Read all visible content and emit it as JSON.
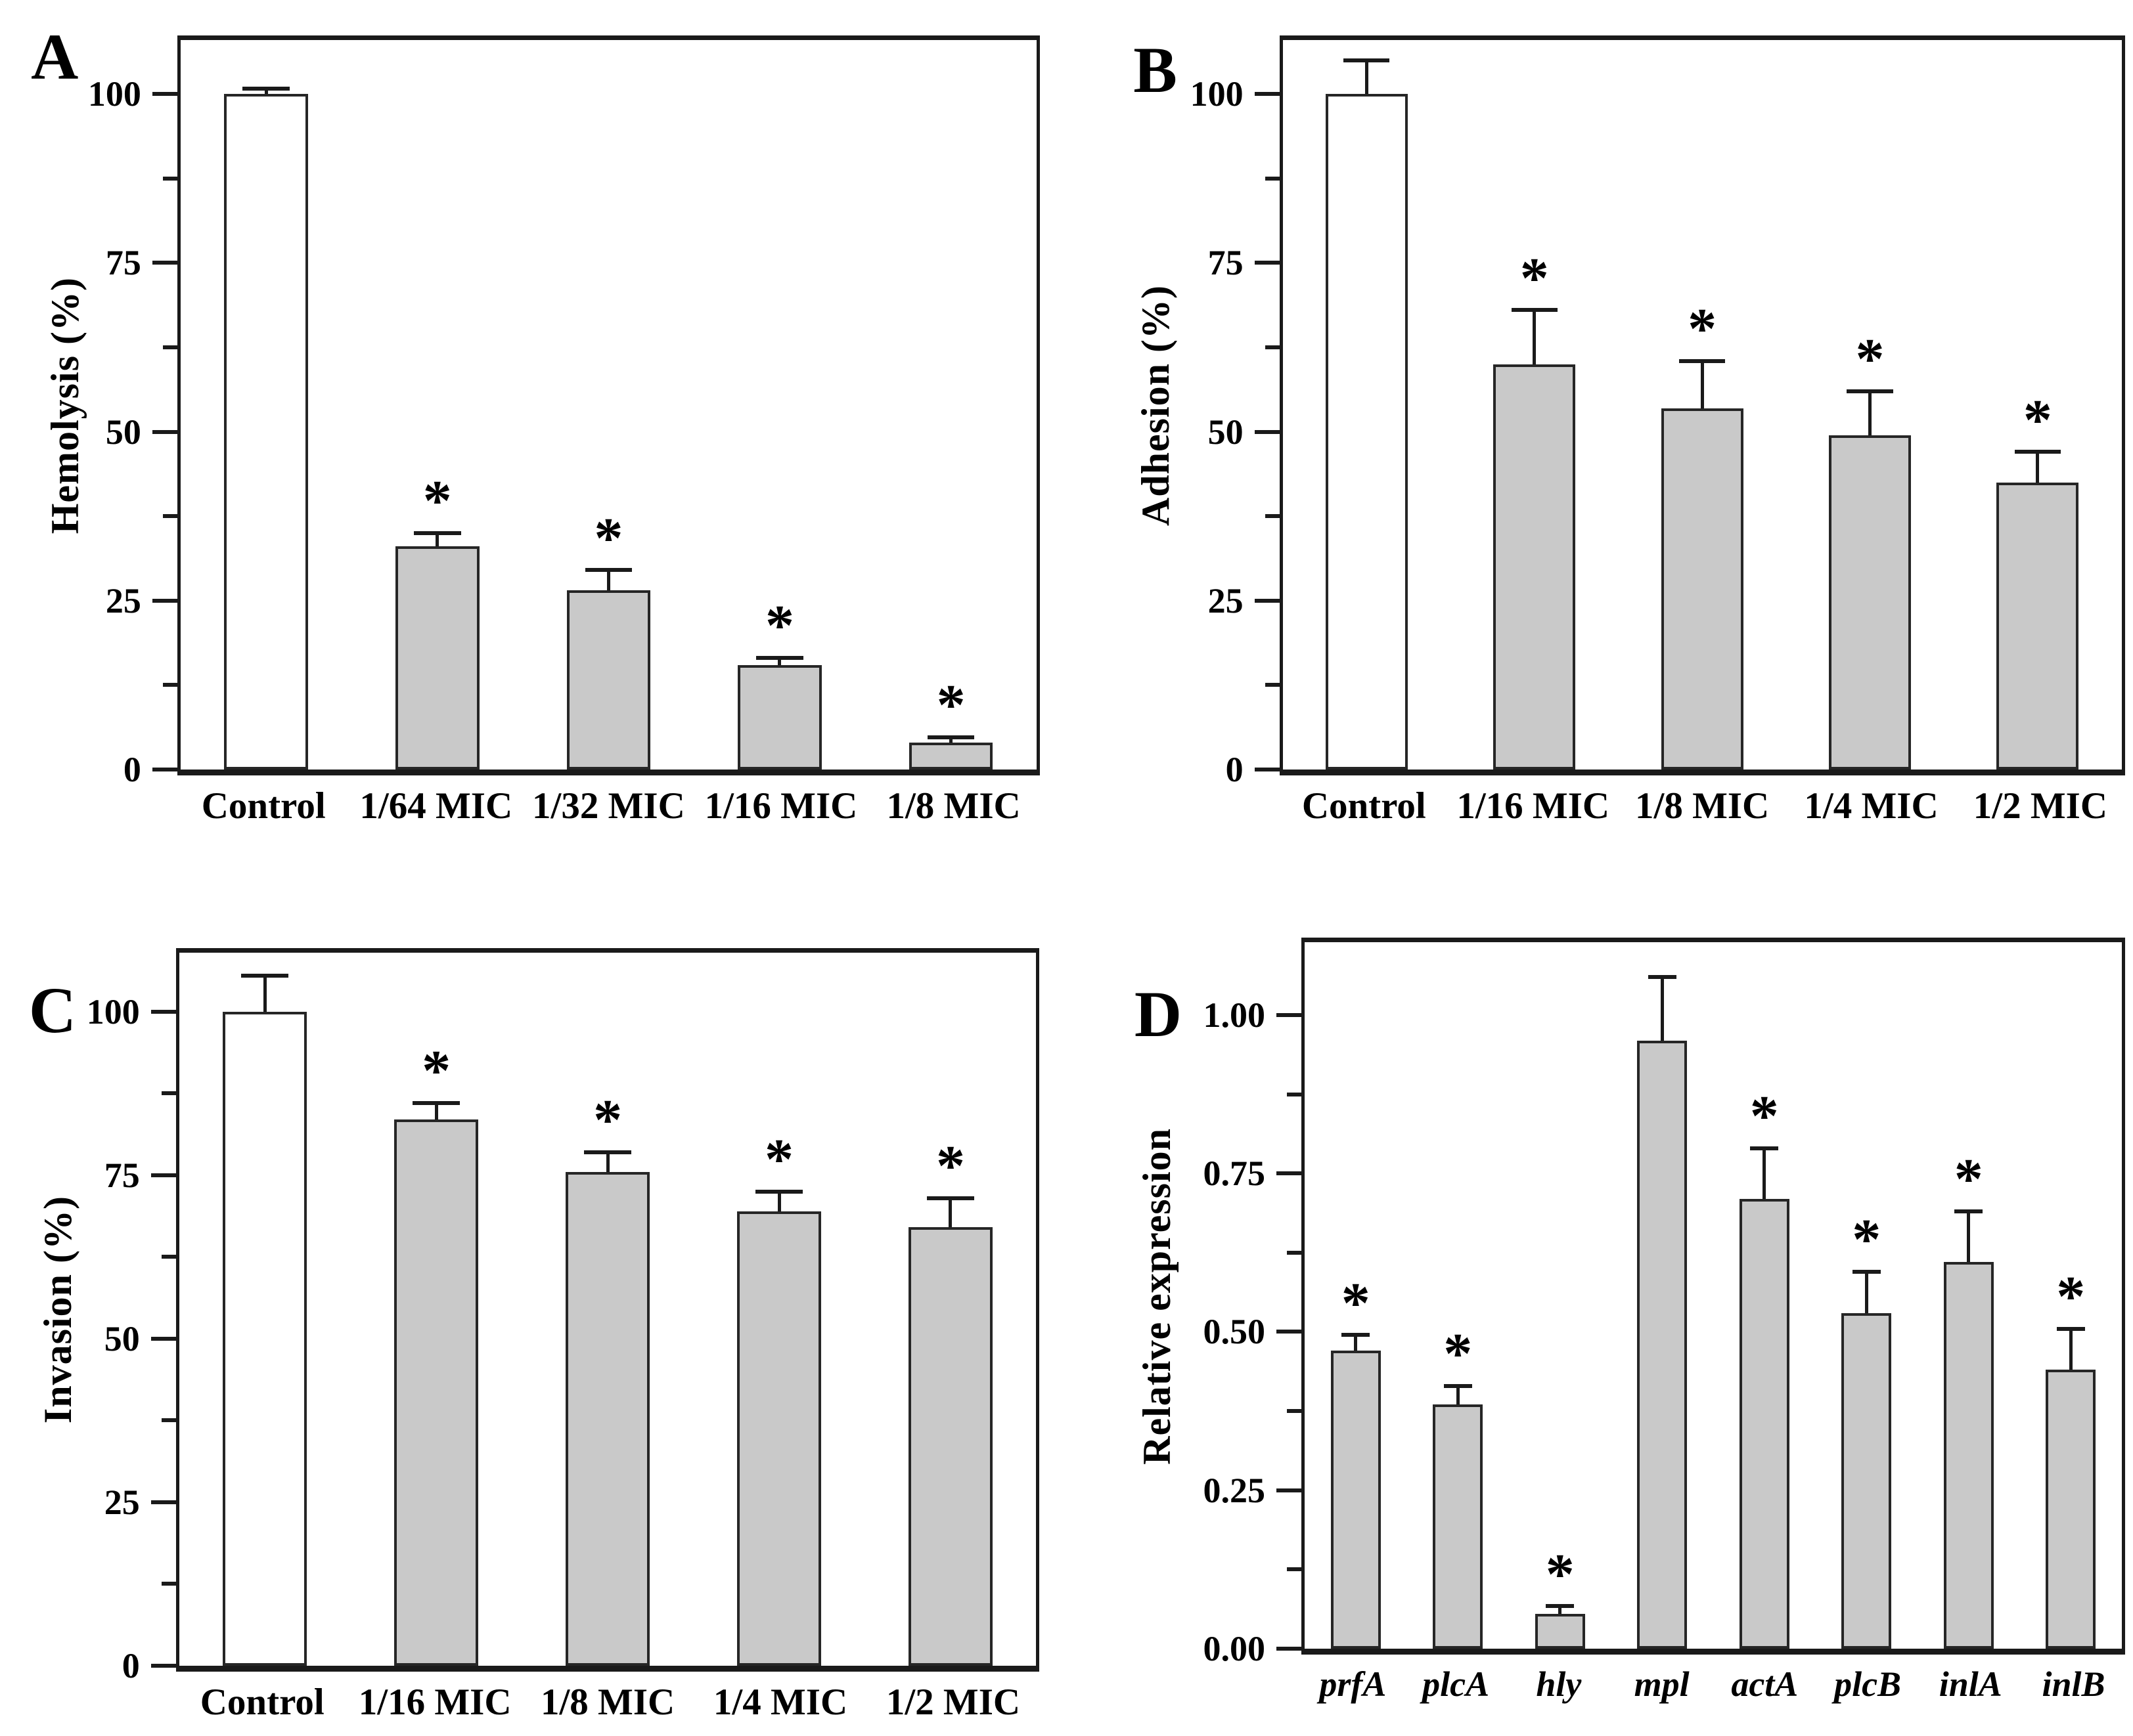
{
  "figure": {
    "background": "#ffffff"
  },
  "style": {
    "figure_bg": "#ffffff",
    "axis_color": "#1a1a1a",
    "text_color": "#000000",
    "bar_fill_treated": "#c9c9c9",
    "bar_fill_control": "#ffffff",
    "bar_edge": "#262626",
    "significance_marker": "*"
  },
  "chart_data": [
    {
      "panel": "A",
      "type": "bar",
      "title": "",
      "xlabel": "",
      "ylabel": "Hemolysis (%)",
      "ylim": [
        0,
        108
      ],
      "grid": false,
      "legend": "none",
      "yticks": [
        {
          "v": 0,
          "label": "0"
        },
        {
          "v": 25,
          "label": "25"
        },
        {
          "v": 50,
          "label": "50"
        },
        {
          "v": 75,
          "label": "75"
        },
        {
          "v": 100,
          "label": "100"
        }
      ],
      "minor_yticks": [
        12.5,
        37.5,
        62.5,
        87.5
      ],
      "categories": [
        "Control",
        "1/64 MIC",
        "1/32 MIC",
        "1/16 MIC",
        "1/8 MIC"
      ],
      "values": [
        100,
        33,
        26.5,
        15.5,
        4
      ],
      "errors": [
        0.8,
        2,
        3,
        1,
        0.8
      ],
      "control_index": 0,
      "significant": [
        false,
        true,
        true,
        true,
        true
      ],
      "italic_categories": false
    },
    {
      "panel": "B",
      "type": "bar",
      "title": "",
      "xlabel": "",
      "ylabel": "Adhesion (%)",
      "ylim": [
        0,
        108
      ],
      "grid": false,
      "legend": "none",
      "yticks": [
        {
          "v": 0,
          "label": "0"
        },
        {
          "v": 25,
          "label": "25"
        },
        {
          "v": 50,
          "label": "50"
        },
        {
          "v": 75,
          "label": "75"
        },
        {
          "v": 100,
          "label": "100"
        }
      ],
      "minor_yticks": [
        12.5,
        37.5,
        62.5,
        87.5
      ],
      "categories": [
        "Control",
        "1/16 MIC",
        "1/8 MIC",
        "1/4 MIC",
        "1/2 MIC"
      ],
      "values": [
        100,
        60,
        53.5,
        49.5,
        42.5
      ],
      "errors": [
        5,
        8,
        7,
        6.5,
        4.5
      ],
      "control_index": 0,
      "significant": [
        false,
        true,
        true,
        true,
        true
      ],
      "italic_categories": false
    },
    {
      "panel": "C",
      "type": "bar",
      "title": "",
      "xlabel": "",
      "ylabel": "Invasion (%)",
      "ylim": [
        0,
        109
      ],
      "grid": false,
      "legend": "none",
      "yticks": [
        {
          "v": 0,
          "label": "0"
        },
        {
          "v": 25,
          "label": "25"
        },
        {
          "v": 50,
          "label": "50"
        },
        {
          "v": 75,
          "label": "75"
        },
        {
          "v": 100,
          "label": "100"
        }
      ],
      "minor_yticks": [
        12.5,
        37.5,
        62.5,
        87.5
      ],
      "categories": [
        "Control",
        "1/16 MIC",
        "1/8 MIC",
        "1/4 MIC",
        "1/2 MIC"
      ],
      "values": [
        100,
        83.5,
        75.5,
        69.5,
        67
      ],
      "errors": [
        5.5,
        2.5,
        3,
        3,
        4.5
      ],
      "control_index": 0,
      "significant": [
        false,
        true,
        true,
        true,
        true
      ],
      "italic_categories": false
    },
    {
      "panel": "D",
      "type": "bar",
      "title": "",
      "xlabel": "",
      "ylabel": "Relative expression",
      "ylim": [
        0,
        1.115
      ],
      "grid": false,
      "legend": "none",
      "yticks": [
        {
          "v": 0,
          "label": "0.00"
        },
        {
          "v": 0.25,
          "label": "0.25"
        },
        {
          "v": 0.5,
          "label": "0.50"
        },
        {
          "v": 0.75,
          "label": "0.75"
        },
        {
          "v": 1.0,
          "label": "1.00"
        }
      ],
      "minor_yticks": [
        0.125,
        0.375,
        0.625,
        0.875
      ],
      "categories": [
        "prfA",
        "plcA",
        "hly",
        "mpl",
        "actA",
        "plcB",
        "inlA",
        "inlB"
      ],
      "values": [
        0.47,
        0.385,
        0.055,
        0.96,
        0.71,
        0.53,
        0.61,
        0.44
      ],
      "errors": [
        0.025,
        0.03,
        0.012,
        0.1,
        0.08,
        0.065,
        0.08,
        0.065
      ],
      "control_index": -1,
      "significant": [
        true,
        true,
        true,
        false,
        true,
        true,
        true,
        true
      ],
      "italic_categories": true
    }
  ]
}
